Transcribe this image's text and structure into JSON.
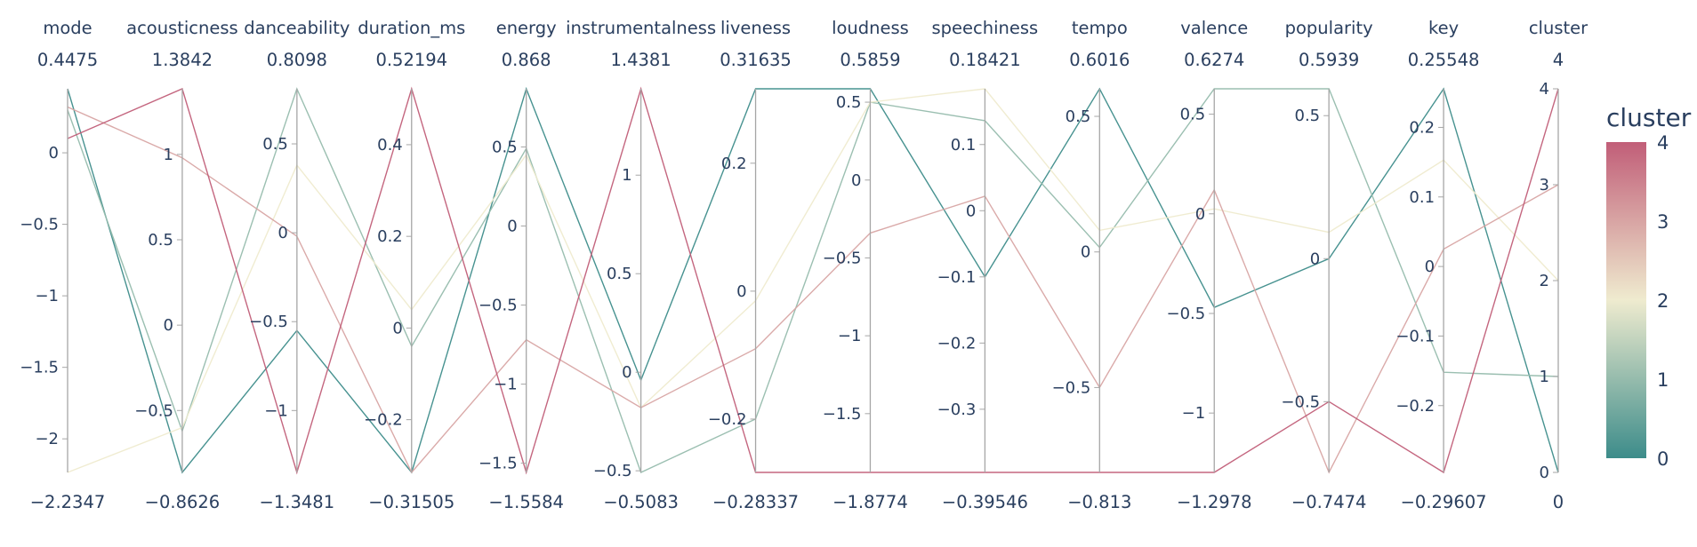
{
  "chart_data": {
    "type": "parallel_coordinates",
    "colorscale": {
      "title": "cluster",
      "stops": [
        [
          0,
          "#3d8c8a"
        ],
        [
          0.5,
          "#efebcf"
        ],
        [
          1,
          "#c15e78"
        ]
      ],
      "range": [
        0,
        4
      ],
      "ticks": [
        "0",
        "1",
        "2",
        "3",
        "4"
      ]
    },
    "dimensions": [
      {
        "name": "mode",
        "min": -2.2347,
        "max": 0.4475,
        "min_label": "−2.2347",
        "max_label": "0.4475",
        "ticks": [
          {
            "v": 0,
            "t": "0"
          },
          {
            "v": -0.5,
            "t": "−0.5"
          },
          {
            "v": -1,
            "t": "−1"
          },
          {
            "v": -1.5,
            "t": "−1.5"
          },
          {
            "v": -2,
            "t": "−2"
          }
        ]
      },
      {
        "name": "acousticness",
        "min": -0.8626,
        "max": 1.3842,
        "min_label": "−0.8626",
        "max_label": "1.3842",
        "ticks": [
          {
            "v": 1,
            "t": "1"
          },
          {
            "v": 0.5,
            "t": "0.5"
          },
          {
            "v": 0,
            "t": "0"
          },
          {
            "v": -0.5,
            "t": "−0.5"
          }
        ]
      },
      {
        "name": "danceability",
        "min": -1.3481,
        "max": 0.8098,
        "min_label": "−1.3481",
        "max_label": "0.8098",
        "ticks": [
          {
            "v": 0.5,
            "t": "0.5"
          },
          {
            "v": 0,
            "t": "0"
          },
          {
            "v": -0.5,
            "t": "−0.5"
          },
          {
            "v": -1,
            "t": "−1"
          }
        ]
      },
      {
        "name": "duration_ms",
        "min": -0.31505,
        "max": 0.52194,
        "min_label": "−0.31505",
        "max_label": "0.52194",
        "ticks": [
          {
            "v": 0.4,
            "t": "0.4"
          },
          {
            "v": 0.2,
            "t": "0.2"
          },
          {
            "v": 0,
            "t": "0"
          },
          {
            "v": -0.2,
            "t": "−0.2"
          }
        ]
      },
      {
        "name": "energy",
        "min": -1.5584,
        "max": 0.868,
        "min_label": "−1.5584",
        "max_label": "0.868",
        "ticks": [
          {
            "v": 0.5,
            "t": "0.5"
          },
          {
            "v": 0,
            "t": "0"
          },
          {
            "v": -0.5,
            "t": "−0.5"
          },
          {
            "v": -1,
            "t": "−1"
          },
          {
            "v": -1.5,
            "t": "−1.5"
          }
        ]
      },
      {
        "name": "instrumentalness",
        "min": -0.5083,
        "max": 1.4381,
        "min_label": "−0.5083",
        "max_label": "1.4381",
        "ticks": [
          {
            "v": 1,
            "t": "1"
          },
          {
            "v": 0.5,
            "t": "0.5"
          },
          {
            "v": 0,
            "t": "0"
          },
          {
            "v": -0.5,
            "t": "−0.5"
          }
        ]
      },
      {
        "name": "liveness",
        "min": -0.28337,
        "max": 0.31635,
        "min_label": "−0.28337",
        "max_label": "0.31635",
        "ticks": [
          {
            "v": 0.2,
            "t": "0.2"
          },
          {
            "v": 0,
            "t": "0"
          },
          {
            "v": -0.2,
            "t": "−0.2"
          }
        ]
      },
      {
        "name": "loudness",
        "min": -1.8774,
        "max": 0.5859,
        "min_label": "−1.8774",
        "max_label": "0.5859",
        "ticks": [
          {
            "v": 0.5,
            "t": "0.5"
          },
          {
            "v": 0,
            "t": "0"
          },
          {
            "v": -0.5,
            "t": "−0.5"
          },
          {
            "v": -1,
            "t": "−1"
          },
          {
            "v": -1.5,
            "t": "−1.5"
          }
        ]
      },
      {
        "name": "speechiness",
        "min": -0.39546,
        "max": 0.18421,
        "min_label": "−0.39546",
        "max_label": "0.18421",
        "ticks": [
          {
            "v": 0.1,
            "t": "0.1"
          },
          {
            "v": 0,
            "t": "0"
          },
          {
            "v": -0.1,
            "t": "−0.1"
          },
          {
            "v": -0.2,
            "t": "−0.2"
          },
          {
            "v": -0.3,
            "t": "−0.3"
          }
        ]
      },
      {
        "name": "tempo",
        "min": -0.813,
        "max": 0.6016,
        "min_label": "−0.813",
        "max_label": "0.6016",
        "ticks": [
          {
            "v": 0.5,
            "t": "0.5"
          },
          {
            "v": 0,
            "t": "0"
          },
          {
            "v": -0.5,
            "t": "−0.5"
          }
        ]
      },
      {
        "name": "valence",
        "min": -1.2978,
        "max": 0.6274,
        "min_label": "−1.2978",
        "max_label": "0.6274",
        "ticks": [
          {
            "v": 0.5,
            "t": "0.5"
          },
          {
            "v": 0,
            "t": "0"
          },
          {
            "v": -0.5,
            "t": "−0.5"
          },
          {
            "v": -1,
            "t": "−1"
          }
        ]
      },
      {
        "name": "popularity",
        "min": -0.7474,
        "max": 0.5939,
        "min_label": "−0.7474",
        "max_label": "0.5939",
        "ticks": [
          {
            "v": 0.5,
            "t": "0.5"
          },
          {
            "v": 0,
            "t": "0"
          },
          {
            "v": -0.5,
            "t": "−0.5"
          }
        ]
      },
      {
        "name": "key",
        "min": -0.29607,
        "max": 0.25548,
        "min_label": "−0.29607",
        "max_label": "0.25548",
        "ticks": [
          {
            "v": 0.2,
            "t": "0.2"
          },
          {
            "v": 0.1,
            "t": "0.1"
          },
          {
            "v": 0,
            "t": "0"
          },
          {
            "v": -0.1,
            "t": "−0.1"
          },
          {
            "v": -0.2,
            "t": "−0.2"
          }
        ]
      },
      {
        "name": "cluster",
        "min": 0,
        "max": 4,
        "min_label": "0",
        "max_label": "4",
        "ticks": [
          {
            "v": 4,
            "t": "4"
          },
          {
            "v": 3,
            "t": "3"
          },
          {
            "v": 2,
            "t": "2"
          },
          {
            "v": 1,
            "t": "1"
          },
          {
            "v": 0,
            "t": "0"
          }
        ]
      }
    ],
    "series": [
      {
        "cluster": 0,
        "values": [
          0.4475,
          -0.8626,
          -0.55,
          -0.31505,
          0.868,
          -0.04,
          0.31635,
          0.5859,
          -0.1,
          0.6016,
          -0.47,
          0.0,
          0.25548,
          0
        ]
      },
      {
        "cluster": 1,
        "values": [
          0.3,
          -0.62,
          0.8098,
          -0.04,
          0.49,
          -0.5083,
          -0.2,
          0.5,
          0.136,
          0.0165,
          0.6274,
          0.5939,
          -0.152,
          1
        ]
      },
      {
        "cluster": 2,
        "values": [
          -2.2347,
          -0.6,
          0.38,
          0.04,
          0.45,
          -0.18,
          -0.015,
          0.5,
          0.18421,
          0.0795,
          0.025,
          0.092,
          0.153,
          2
        ]
      },
      {
        "cluster": 3,
        "values": [
          0.32,
          0.98,
          -0.02,
          -0.31505,
          -0.72,
          -0.18,
          -0.09,
          -0.34,
          0.022,
          -0.5,
          0.12,
          -0.7474,
          0.025,
          3
        ]
      },
      {
        "cluster": 4,
        "values": [
          0.1,
          1.3842,
          -1.3481,
          0.52194,
          -1.5584,
          1.4381,
          -0.28337,
          -1.8774,
          -0.39546,
          -0.813,
          -1.2978,
          -0.5,
          -0.29607,
          4
        ]
      }
    ]
  }
}
